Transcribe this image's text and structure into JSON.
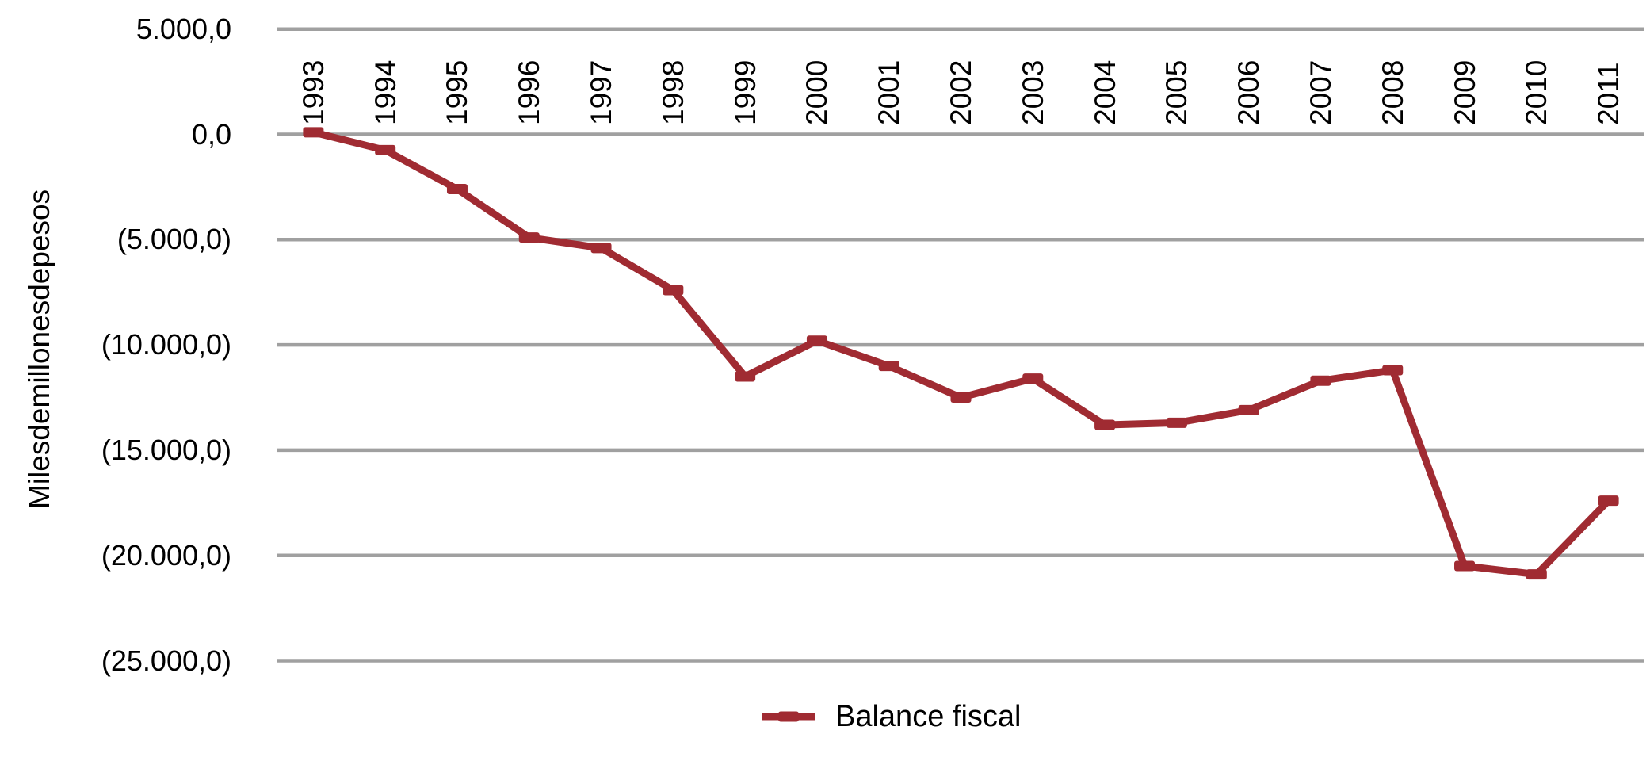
{
  "chart_data": {
    "type": "line",
    "title": "",
    "ylabel": "Milesdemillonesdepesos",
    "xlabel": "",
    "categories": [
      "1993",
      "1994",
      "1995",
      "1996",
      "1997",
      "1998",
      "1999",
      "2000",
      "2001",
      "2002",
      "2003",
      "2004",
      "2005",
      "2006",
      "2007",
      "2008",
      "2009",
      "2010",
      "2011"
    ],
    "series": [
      {
        "name": "Balance fiscal",
        "values": [
          100,
          -750,
          -2600,
          -4900,
          -5400,
          -7400,
          -11500,
          -9800,
          -11000,
          -12500,
          -11600,
          -13800,
          -13700,
          -13100,
          -11700,
          -11200,
          -20500,
          -20900,
          -17400
        ]
      }
    ],
    "y_ticks": [
      {
        "value": 5000,
        "label": "5.000,0"
      },
      {
        "value": 0,
        "label": "0,0"
      },
      {
        "value": -5000,
        "label": "(5.000,0)"
      },
      {
        "value": -10000,
        "label": "(10.000,0)"
      },
      {
        "value": -15000,
        "label": "(15.000,0)"
      },
      {
        "value": -20000,
        "label": "(20.000,0)"
      },
      {
        "value": -25000,
        "label": "(25.000,0)"
      }
    ],
    "ylim": [
      -25000,
      5000
    ],
    "grid": "horizontal",
    "legend_position": "bottom-center",
    "marker_style": "dash",
    "colors": {
      "series": "#A02B32",
      "gridline": "#A0A0A0",
      "text": "#000000"
    }
  }
}
